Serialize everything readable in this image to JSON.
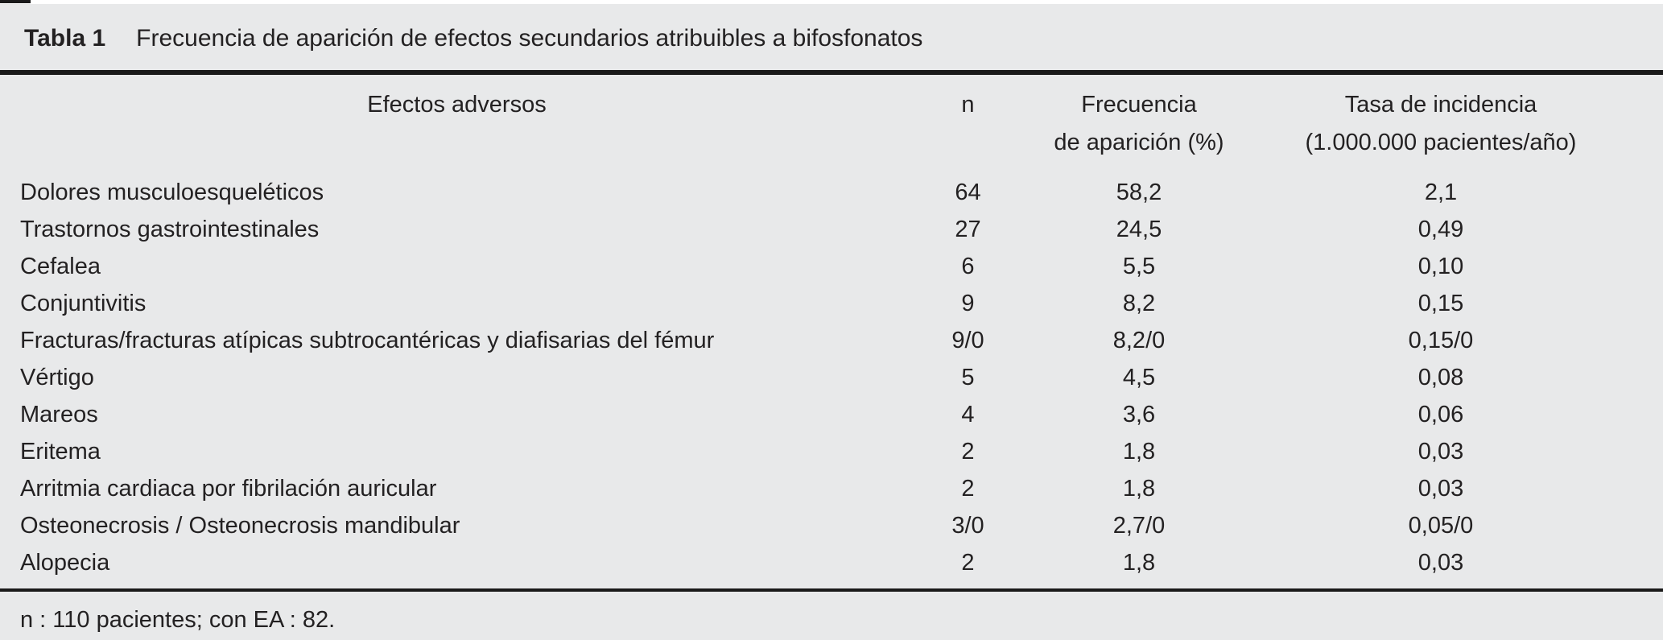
{
  "figure": {
    "label": "Tabla 1",
    "title": "Frecuencia de aparición de efectos secundarios atribuibles a bifosfonatos"
  },
  "header": {
    "efectos": {
      "line1": "Efectos adversos",
      "line2": ""
    },
    "n": {
      "line1": "n",
      "line2": ""
    },
    "frecuencia": {
      "line1": "Frecuencia",
      "line2": "de aparición (%)"
    },
    "tasa": {
      "line1": "Tasa de incidencia",
      "line2": "(1.000.000 pacientes/año)"
    }
  },
  "rows": [
    {
      "efecto": "Dolores musculoesqueléticos",
      "n": "64",
      "frecuencia": "58,2",
      "tasa": "2,1"
    },
    {
      "efecto": "Trastornos gastrointestinales",
      "n": "27",
      "frecuencia": "24,5",
      "tasa": "0,49"
    },
    {
      "efecto": "Cefalea",
      "n": "6",
      "frecuencia": "5,5",
      "tasa": "0,10"
    },
    {
      "efecto": "Conjuntivitis",
      "n": "9",
      "frecuencia": "8,2",
      "tasa": "0,15"
    },
    {
      "efecto": "Fracturas/fracturas atípicas subtrocantéricas y diafisarias del fémur",
      "n": "9/0",
      "frecuencia": "8,2/0",
      "tasa": "0,15/0"
    },
    {
      "efecto": "Vértigo",
      "n": "5",
      "frecuencia": "4,5",
      "tasa": "0,08"
    },
    {
      "efecto": "Mareos",
      "n": "4",
      "frecuencia": "3,6",
      "tasa": "0,06"
    },
    {
      "efecto": "Eritema",
      "n": "2",
      "frecuencia": "1,8",
      "tasa": "0,03"
    },
    {
      "efecto": "Arritmia cardiaca por fibrilación auricular",
      "n": "2",
      "frecuencia": "1,8",
      "tasa": "0,03"
    },
    {
      "efecto": "Osteonecrosis / Osteonecrosis mandibular",
      "n": "3/0",
      "frecuencia": "2,7/0",
      "tasa": "0,05/0"
    },
    {
      "efecto": "Alopecia",
      "n": "2",
      "frecuencia": "1,8",
      "tasa": "0,03"
    }
  ],
  "footnote": "n : 110 pacientes; con EA : 82.",
  "colors": {
    "background": "#e8e9ea",
    "text": "#232122",
    "rule": "#1a1a1a"
  }
}
